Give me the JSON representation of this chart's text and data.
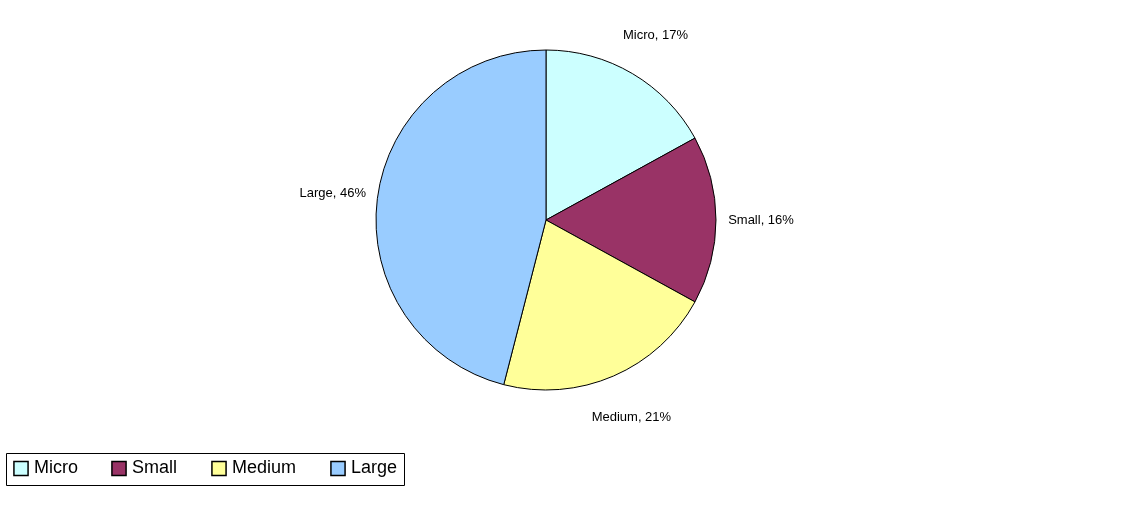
{
  "chart_data": {
    "type": "pie",
    "categories": [
      "Micro",
      "Small",
      "Medium",
      "Large"
    ],
    "values": [
      17,
      16,
      21,
      46
    ],
    "colors": [
      "#ccffff",
      "#993366",
      "#ffff99",
      "#99ccff"
    ],
    "value_labels": [
      "Micro, 17%",
      "Small, 16%",
      "Medium, 21%",
      "Large, 46%"
    ],
    "legend": "bottom"
  }
}
